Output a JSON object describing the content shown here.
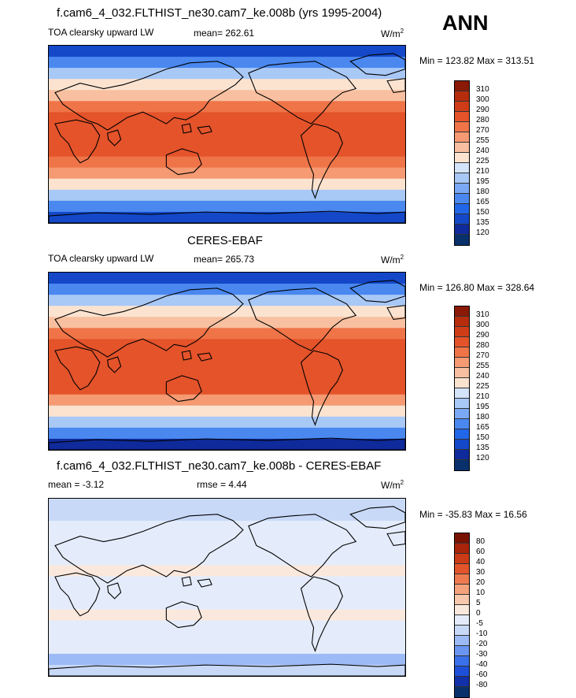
{
  "season": "ANN",
  "palette": {
    "temp": [
      "#08306b",
      "#0f2a9a",
      "#1448c8",
      "#2166e8",
      "#4a88f0",
      "#7aa8f4",
      "#a8c8f6",
      "#d4e4fa",
      "#fbe3d0",
      "#f8c0a0",
      "#f59a72",
      "#ef7448",
      "#e4532a",
      "#cf3d18",
      "#b52d0d",
      "#8a1a05"
    ],
    "diff": [
      "#08306b",
      "#1230a8",
      "#1d4fd8",
      "#3a70ea",
      "#6a96f2",
      "#9cbaf6",
      "#c8d9f8",
      "#e4ecfb",
      "#fbe8dd",
      "#f7c8ac",
      "#f4a27c",
      "#ee7b50",
      "#e2552b",
      "#cc3b17",
      "#a8240a",
      "#7a1203"
    ]
  },
  "chart_data": [
    {
      "type": "heatmap",
      "title": "f.cam6_4_032.FLTHIST_ne30.cam7_ke.008b (yrs 1995-2004)",
      "variable": "TOA clearsky upward LW",
      "stat_text": "mean= 262.61",
      "units_base": "W/m",
      "units_exp": "2",
      "minmax": "Min = 123.82 Max = 313.51",
      "colorbar_levels": [
        "310",
        "300",
        "290",
        "280",
        "270",
        "255",
        "240",
        "225",
        "210",
        "195",
        "180",
        "165",
        "150",
        "135",
        "120"
      ],
      "palette": "temp",
      "zonal_profile": [
        2,
        4,
        6,
        8,
        9,
        11,
        12,
        12,
        12,
        12,
        11,
        10,
        8,
        6,
        4,
        2
      ]
    },
    {
      "type": "heatmap",
      "title": "CERES-EBAF",
      "variable": "TOA clearsky upward LW",
      "stat_text": "mean= 265.73",
      "units_base": "W/m",
      "units_exp": "2",
      "minmax": "Min = 126.80 Max = 328.64",
      "colorbar_levels": [
        "310",
        "300",
        "290",
        "280",
        "270",
        "255",
        "240",
        "225",
        "210",
        "195",
        "180",
        "165",
        "150",
        "135",
        "120"
      ],
      "palette": "temp",
      "zonal_profile": [
        2,
        4,
        6,
        8,
        9,
        11,
        12,
        12,
        12,
        12,
        12,
        10,
        8,
        6,
        4,
        1
      ]
    },
    {
      "type": "heatmap",
      "title": "f.cam6_4_032.FLTHIST_ne30.cam7_ke.008b - CERES-EBAF",
      "variable": "mean =  -3.12",
      "stat_text": "rmse =   4.44",
      "units_base": "W/m",
      "units_exp": "2",
      "minmax": "Min = -35.83 Max =  16.56",
      "colorbar_levels": [
        "80",
        "60",
        "40",
        "30",
        "20",
        "10",
        "5",
        "0",
        "-5",
        "-10",
        "-20",
        "-30",
        "-40",
        "-60",
        "-80"
      ],
      "palette": "diff",
      "zonal_profile": [
        6,
        6,
        7,
        7,
        7,
        7,
        8,
        7,
        7,
        7,
        8,
        7,
        7,
        7,
        5,
        6
      ]
    }
  ]
}
